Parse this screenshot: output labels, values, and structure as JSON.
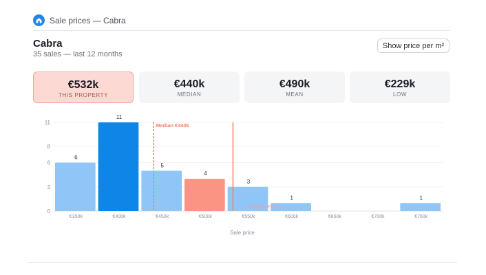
{
  "header": {
    "title": "Sale prices — Cabra",
    "icon": "home-icon"
  },
  "property": {
    "name": "Cabra",
    "subtitle": "35 sales — last 12 months"
  },
  "toolbar": {
    "toggle_label": "Show price per m²"
  },
  "stats": [
    {
      "value": "€532k",
      "label": "THIS PROPERTY",
      "active": true
    },
    {
      "value": "€440k",
      "label": "MEDIAN",
      "active": false
    },
    {
      "value": "€490k",
      "label": "MEAN",
      "active": false
    },
    {
      "value": "€229k",
      "label": "LOW",
      "active": false
    }
  ],
  "colors": {
    "bar": "#90c5f8",
    "bar_highlight": "#0d86e8",
    "bar_property": "#fb9483",
    "median_line": "#f4806b",
    "property_line": "#f4806b"
  },
  "chart_data": {
    "type": "bar",
    "categories": [
      "€350k",
      "€400k",
      "€450k",
      "€500k",
      "€550k",
      "€600k",
      "€650k",
      "€700k",
      "€750k"
    ],
    "values": [
      6,
      11,
      5,
      4,
      3,
      1,
      0,
      0,
      1
    ],
    "highlight_index": 1,
    "property_index": 3,
    "xlabel": "Sale price",
    "ylabel": "",
    "ylim": [
      0,
      11
    ],
    "yticks": [
      "0",
      "3",
      "6",
      "8",
      "11"
    ],
    "ytick_values": [
      0,
      3,
      6,
      8,
      11
    ],
    "annotations": {
      "median": {
        "label": "Median €440k",
        "x_value": 440
      },
      "property": {
        "label": "Property €532k",
        "x_value": 532
      }
    },
    "grid": true
  }
}
